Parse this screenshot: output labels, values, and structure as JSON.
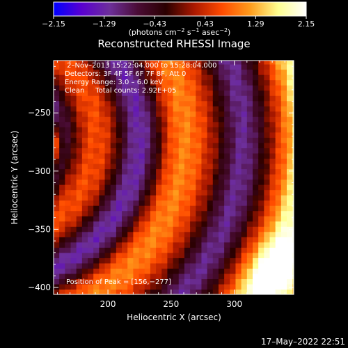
{
  "chart_data": {
    "type": "heatmap",
    "title": "Reconstructed RHESSI Image",
    "xlabel": "Heliocentric X (arcsec)",
    "ylabel": "Heliocentric Y (arcsec)",
    "xlim": [
      157,
      347
    ],
    "ylim": [
      -406,
      -205
    ],
    "x_ticks": [
      {
        "value": 200,
        "label": "200"
      },
      {
        "value": 250,
        "label": "250"
      },
      {
        "value": 300,
        "label": "300"
      }
    ],
    "y_ticks": [
      {
        "value": -250,
        "label": "−250"
      },
      {
        "value": -300,
        "label": "−300"
      },
      {
        "value": -350,
        "label": "−350"
      },
      {
        "value": -400,
        "label": "−400"
      }
    ],
    "colorbar": {
      "range": [
        -2.15,
        2.15
      ],
      "ticks": [
        {
          "value": -2.15,
          "label": "−2.15"
        },
        {
          "value": -1.29,
          "label": "−1.29"
        },
        {
          "value": -0.43,
          "label": "−0.43"
        },
        {
          "value": 0.43,
          "label": "0.43"
        },
        {
          "value": 1.29,
          "label": "1.29"
        },
        {
          "value": 2.15,
          "label": "2.15"
        }
      ],
      "unit_parts": [
        "(photons cm",
        "−2",
        " s",
        "−1",
        " asec",
        "−2",
        ")"
      ],
      "stops": [
        "#0000ff",
        "#5a00d0",
        "#6d2f9a",
        "#4a0c35",
        "#2a0000",
        "#aa1800",
        "#ff4b00",
        "#ff9c1c",
        "#ffff90",
        "#ffffff"
      ]
    },
    "annotations": [
      " 2–Nov–2013 15:22:04.000 to 15:28:04.000",
      "Detectors: 3F 4F 5F 6F 7F 8F, Att 0",
      "Energy Range: 3.0 – 6.0 keV",
      "Clean     Total counts: 2.92E+05"
    ],
    "peak_label": "Position of Peak = [156,−277]",
    "peak": {
      "x": 156,
      "y": -277
    },
    "arc_center": {
      "x": 95,
      "y": -270
    },
    "arc_features": [
      {
        "kind": "peak",
        "radius": 0,
        "level": 2.15
      },
      {
        "kind": "negative",
        "radius": 63,
        "level": -1.4
      },
      {
        "kind": "positive",
        "radius": 95,
        "level": 0.6
      },
      {
        "kind": "negative",
        "radius": 130,
        "level": -1.5
      },
      {
        "kind": "positive",
        "radius": 165,
        "level": 0.9
      },
      {
        "kind": "negative",
        "radius": 212,
        "level": -1.3
      },
      {
        "kind": "positive",
        "radius": 262,
        "level": 1.7
      }
    ]
  },
  "footer": {
    "timestamp": "17–May–2022 22:51"
  }
}
